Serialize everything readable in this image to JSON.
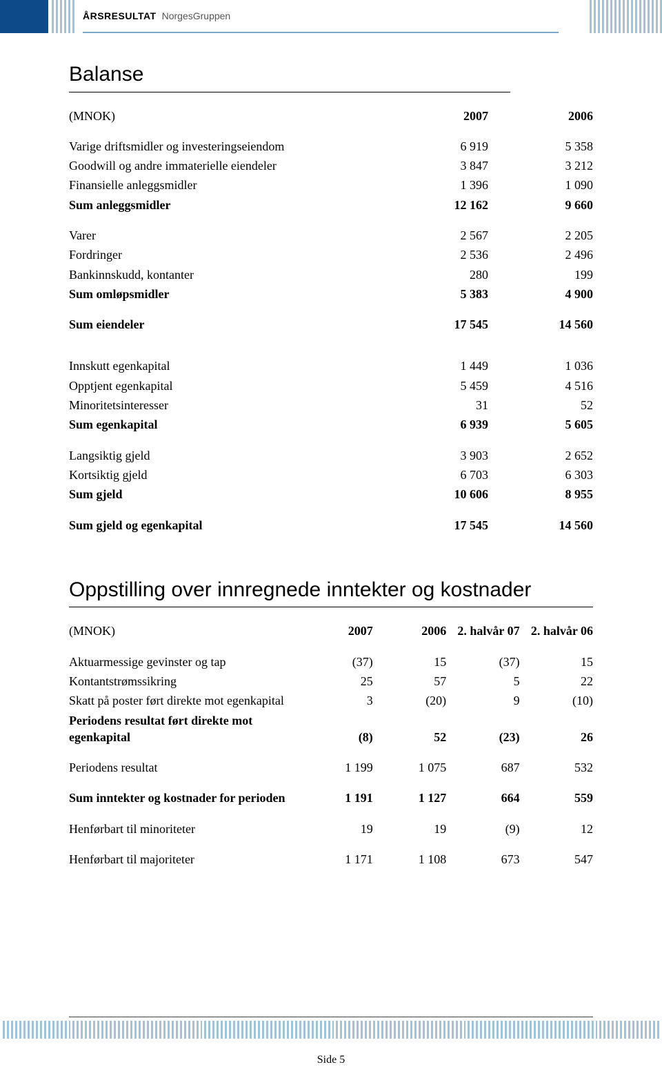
{
  "header": {
    "bold": "ÅRSRESULTAT",
    "light": "NorgesGruppen"
  },
  "balance": {
    "title": "Balanse",
    "unit_label": "(MNOK)",
    "col_headers": [
      "2007",
      "2006"
    ],
    "rows": [
      {
        "label": "Varige driftsmidler og investeringseiendom",
        "v": [
          "6 919",
          "5 358"
        ]
      },
      {
        "label": "Goodwill og andre immaterielle eiendeler",
        "v": [
          "3 847",
          "3 212"
        ]
      },
      {
        "label": "Finansielle anleggsmidler",
        "v": [
          "1 396",
          "1 090"
        ]
      },
      {
        "label": "Sum anleggsmidler",
        "v": [
          "12 162",
          "9 660"
        ],
        "bold": true
      },
      {
        "spacer": true
      },
      {
        "label": "Varer",
        "v": [
          "2 567",
          "2 205"
        ]
      },
      {
        "label": "Fordringer",
        "v": [
          "2 536",
          "2 496"
        ]
      },
      {
        "label": "Bankinnskudd, kontanter",
        "v": [
          "280",
          "199"
        ]
      },
      {
        "label": "Sum omløpsmidler",
        "v": [
          "5 383",
          "4 900"
        ],
        "bold": true
      },
      {
        "spacer": true
      },
      {
        "label": "Sum eiendeler",
        "v": [
          "17 545",
          "14 560"
        ],
        "bold": true
      },
      {
        "big_spacer": true
      },
      {
        "label": "Innskutt egenkapital",
        "v": [
          "1 449",
          "1 036"
        ]
      },
      {
        "label": "Opptjent egenkapital",
        "v": [
          "5 459",
          "4 516"
        ]
      },
      {
        "label": "Minoritetsinteresser",
        "v": [
          "31",
          "52"
        ]
      },
      {
        "label": "Sum egenkapital",
        "v": [
          "6 939",
          "5 605"
        ],
        "bold": true
      },
      {
        "spacer": true
      },
      {
        "label": "Langsiktig gjeld",
        "v": [
          "3 903",
          "2 652"
        ]
      },
      {
        "label": "Kortsiktig gjeld",
        "v": [
          "6 703",
          "6 303"
        ]
      },
      {
        "label": "Sum gjeld",
        "v": [
          "10 606",
          "8 955"
        ],
        "bold": true
      },
      {
        "spacer": true
      },
      {
        "label": "Sum gjeld og egenkapital",
        "v": [
          "17 545",
          "14 560"
        ],
        "bold": true
      }
    ]
  },
  "stmt": {
    "title": "Oppstilling over innregnede inntekter og kostnader",
    "unit_label": "(MNOK)",
    "col_headers": [
      "2007",
      "2006",
      "2. halvår 07",
      "2. halvår 06"
    ],
    "rows": [
      {
        "label": "Aktuarmessige gevinster og tap",
        "v": [
          "(37)",
          "15",
          "(37)",
          "15"
        ]
      },
      {
        "label": "Kontantstrømssikring",
        "v": [
          "25",
          "57",
          "5",
          "22"
        ]
      },
      {
        "label": "Skatt på poster ført direkte mot egenkapital",
        "v": [
          "3",
          "(20)",
          "9",
          "(10)"
        ]
      },
      {
        "label": "Periodens resultat ført direkte mot egenkapital",
        "v": [
          "(8)",
          "52",
          "(23)",
          "26"
        ],
        "bold": true
      },
      {
        "spacer": true
      },
      {
        "label": "Periodens resultat",
        "v": [
          "1 199",
          "1 075",
          "687",
          "532"
        ]
      },
      {
        "spacer": true
      },
      {
        "label": "Sum inntekter og kostnader for perioden",
        "v": [
          "1 191",
          "1 127",
          "664",
          "559"
        ],
        "bold": true
      },
      {
        "spacer": true
      },
      {
        "label": "Henførbart til minoriteter",
        "v": [
          "19",
          "19",
          "(9)",
          "12"
        ]
      },
      {
        "spacer": true
      },
      {
        "label": "Henførbart til majoriteter",
        "v": [
          "1 171",
          "1 108",
          "673",
          "547"
        ]
      }
    ]
  },
  "footer": {
    "page": "Side 5"
  },
  "colors": {
    "header_blue": "#0d4a8a",
    "stripe_blue": "#7aa8c8"
  }
}
